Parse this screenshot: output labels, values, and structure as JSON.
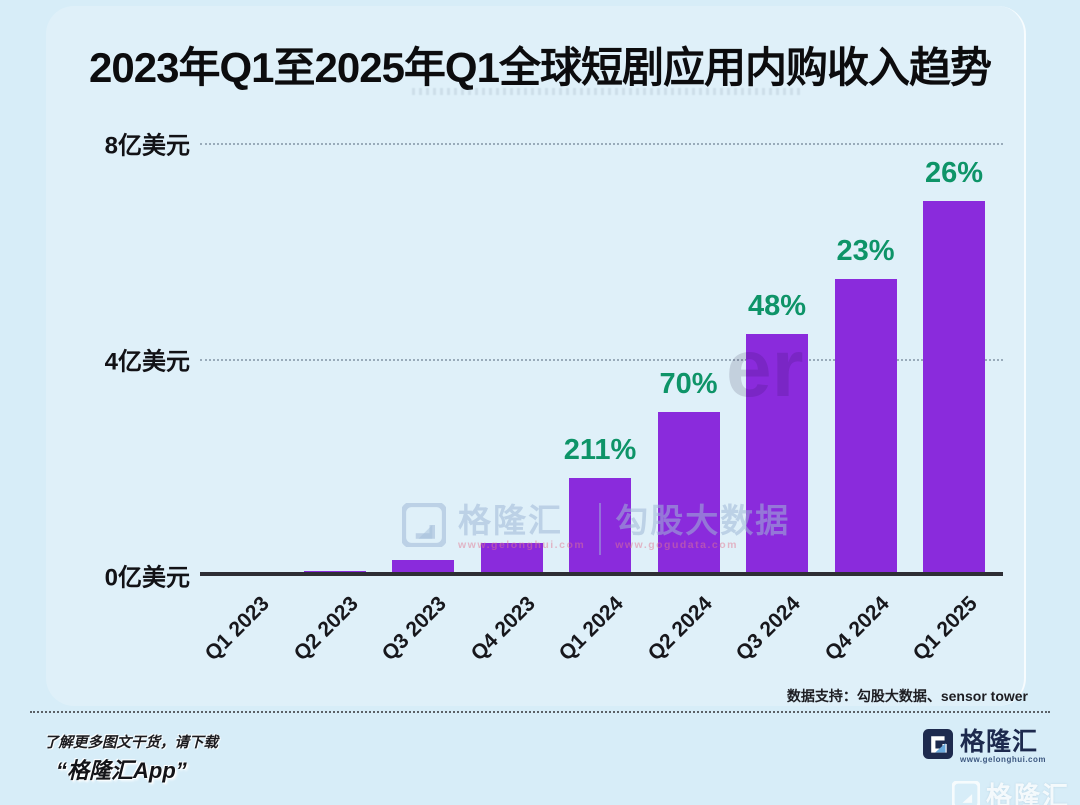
{
  "page": {
    "background_color": "#d7edf8"
  },
  "title": "2023年Q1至2025年Q1全球短剧应用内购收入趋势",
  "chart_data": {
    "type": "bar",
    "title": "2023年Q1至2025年Q1全球短剧应用内购收入趋势",
    "categories": [
      "Q1 2023",
      "Q2 2023",
      "Q3 2023",
      "Q4 2023",
      "Q1 2024",
      "Q2 2024",
      "Q3 2024",
      "Q4 2024",
      "Q1 2025"
    ],
    "values": [
      0.02,
      0.06,
      0.26,
      0.57,
      1.78,
      3.0,
      4.45,
      5.47,
      6.9
    ],
    "unit": "亿美元",
    "growth_labels": [
      null,
      null,
      null,
      null,
      "211%",
      "70%",
      "48%",
      "23%",
      "26%"
    ],
    "yticks": [
      {
        "value": 0,
        "label": "0亿美元"
      },
      {
        "value": 4,
        "label": "4亿美元"
      },
      {
        "value": 8,
        "label": "8亿美元"
      }
    ],
    "ylim": [
      0,
      8
    ],
    "grid": "horizontal-dotted",
    "legend": "none",
    "bar_color": "#8a2bdc",
    "growth_label_color": "#0e9468"
  },
  "source_note": "数据支持：勾股大数据、sensor tower",
  "watermarks": {
    "center": {
      "brand": "格隆汇",
      "brand_url": "www.gelonghui.com",
      "partner": "勾股大数据",
      "partner_url": "www.gogudata.com"
    },
    "fragment": "er",
    "bottom_brand": "格隆汇"
  },
  "footer": {
    "line1": "了解更多图文干货，请下载",
    "line2": "“格隆汇App”",
    "logo_text": "格隆汇",
    "logo_url": "www.gelonghui.com"
  }
}
